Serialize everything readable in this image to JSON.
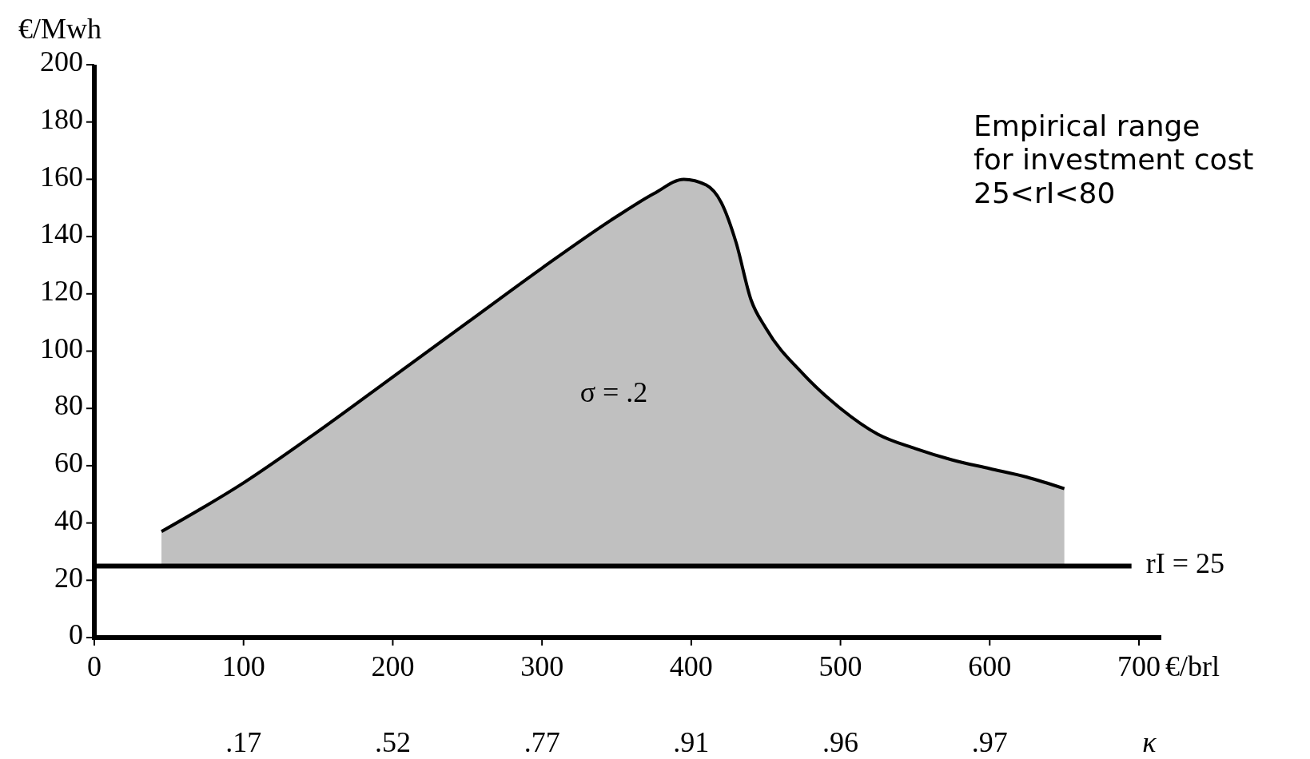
{
  "chart_data": {
    "type": "area",
    "xlabel": "€/brl",
    "ylabel": "€/Mwh",
    "x2label": "κ",
    "xlim": [
      0,
      715
    ],
    "xticks": [
      0,
      100,
      200,
      300,
      400,
      500,
      600,
      700
    ],
    "ylim": [
      0,
      200
    ],
    "yticks": [
      0,
      20,
      40,
      60,
      80,
      100,
      120,
      140,
      160,
      180,
      200
    ],
    "grid": false,
    "series": [
      {
        "color": "#c0c0c0",
        "x": [
          45,
          100,
          150,
          200,
          250,
          300,
          350,
          375,
          395,
          410,
          420,
          430,
          440,
          450,
          475,
          500,
          525,
          550,
          575,
          600,
          625,
          650
        ],
        "values": [
          37,
          54,
          72,
          91,
          110,
          129,
          147,
          155,
          160,
          158,
          152,
          138,
          118,
          108,
          92,
          80,
          71,
          66,
          62,
          59,
          56,
          52
        ]
      }
    ],
    "ref_lines": [
      {
        "axis": "y",
        "value": 25,
        "label": "rI = 25",
        "color": "#000000"
      }
    ],
    "annotations": [
      "σ = .2",
      "Empirical range\nfor investment cost\n25<rI<80",
      ".17",
      ".52",
      ".77",
      ".91",
      ".96",
      ".97"
    ]
  }
}
